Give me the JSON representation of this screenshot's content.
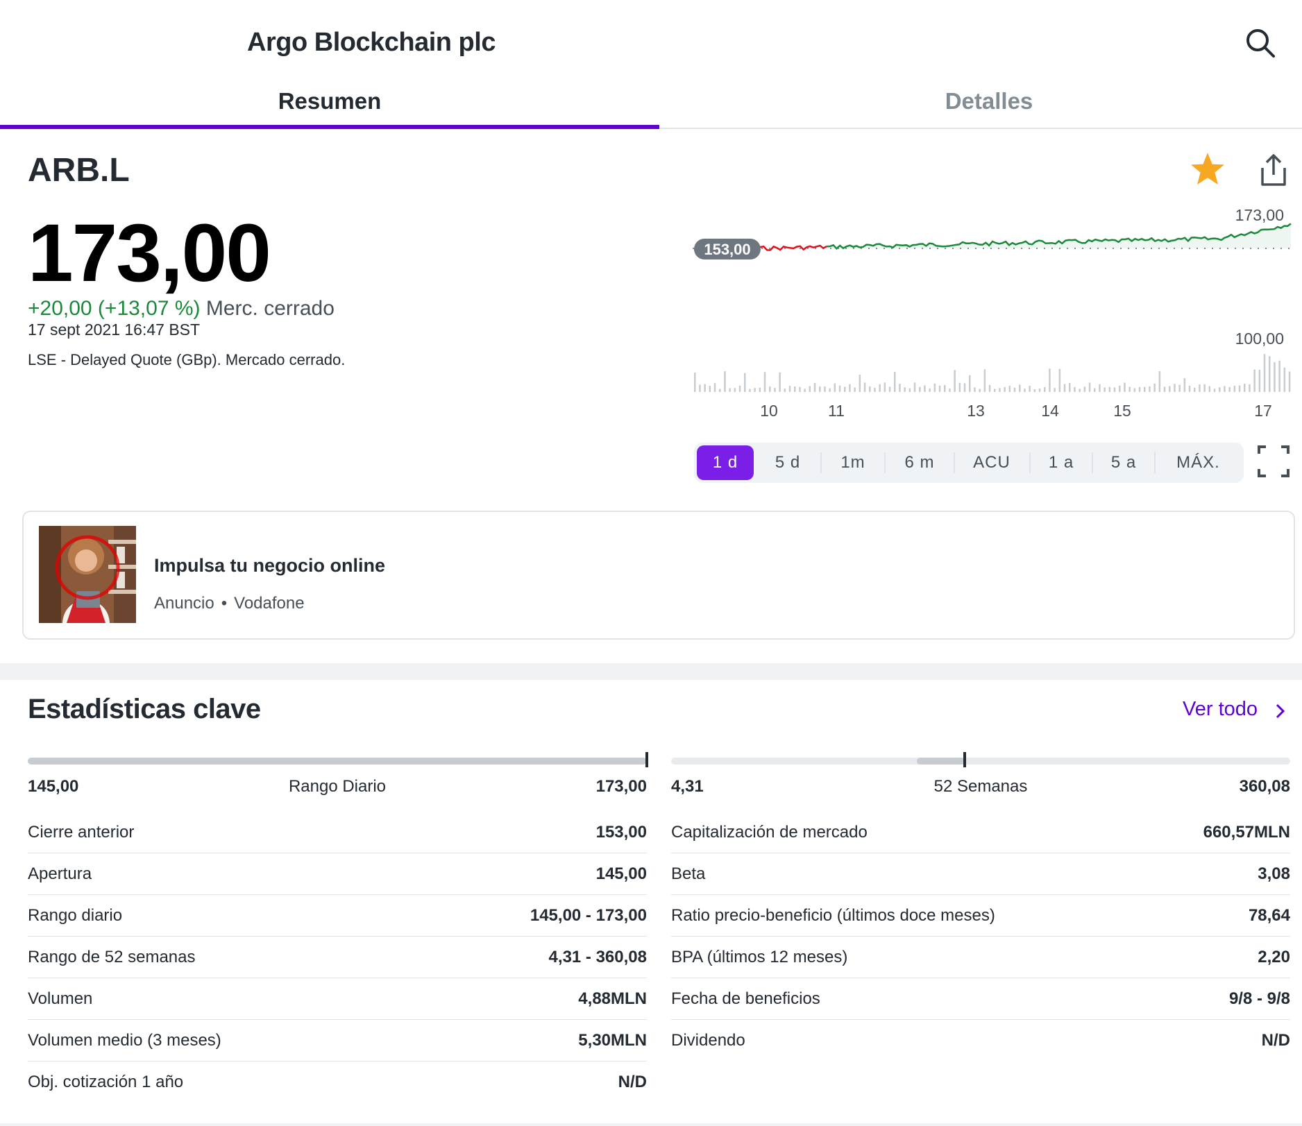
{
  "header": {
    "title": "Argo Blockchain plc"
  },
  "tabs": [
    {
      "label": "Resumen",
      "active": true
    },
    {
      "label": "Detalles",
      "active": false
    }
  ],
  "quote": {
    "ticker": "ARB.L",
    "price": "173,00",
    "change": "+20,00 (+13,07 %)",
    "market_state": "Merc. cerrado",
    "datetime": "17 sept 2021 16:47 BST",
    "source": "LSE - Delayed Quote (GBp). Mercado cerrado."
  },
  "chart": {
    "label_high": "173,00",
    "label_prev_close": "153,00",
    "label_low": "100,00",
    "x_ticks": [
      "10",
      "11",
      "13",
      "14",
      "15",
      "17"
    ],
    "colors": {
      "up": "#1a8a3a",
      "down": "#e0101b",
      "volume": "#c7ccd1"
    }
  },
  "range_selector": {
    "options": [
      "1 d",
      "5 d",
      "1m",
      "6 m",
      "ACU",
      "1 a",
      "5 a",
      "MÁX."
    ],
    "selected": "1 d",
    "accent": "#7b1fe8"
  },
  "ad": {
    "title": "Impulsa tu negocio online",
    "tag": "Anuncio",
    "sponsor": "Vodafone"
  },
  "stats": {
    "title": "Estadísticas clave",
    "view_all": "Ver todo",
    "daily_range": {
      "low": "145,00",
      "label": "Rango Diario",
      "high": "173,00",
      "fill_from": 0,
      "fill_to": 1.0,
      "marker": 1.0
    },
    "week52_range": {
      "low": "4,31",
      "label": "52 Semanas",
      "high": "360,08",
      "fill_from": 0.397,
      "fill_to": 0.474,
      "marker": 0.474
    },
    "left": [
      {
        "label": "Cierre anterior",
        "value": "153,00"
      },
      {
        "label": "Apertura",
        "value": "145,00"
      },
      {
        "label": "Rango diario",
        "value": "145,00 - 173,00"
      },
      {
        "label": "Rango de 52 semanas",
        "value": "4,31 - 360,08"
      },
      {
        "label": "Volumen",
        "value": "4,88MLN"
      },
      {
        "label": "Volumen medio (3 meses)",
        "value": "5,30MLN"
      },
      {
        "label": "Obj. cotización 1 año",
        "value": "N/D"
      }
    ],
    "right": [
      {
        "label": "Capitalización de mercado",
        "value": "660,57MLN"
      },
      {
        "label": "Beta",
        "value": "3,08"
      },
      {
        "label": "Ratio precio-beneficio (últimos doce meses)",
        "value": "78,64"
      },
      {
        "label": "BPA (últimos 12 meses)",
        "value": "2,20"
      },
      {
        "label": "Fecha de beneficios",
        "value": "9/8 - 9/8"
      },
      {
        "label": "Dividendo",
        "value": "N/D"
      }
    ]
  }
}
